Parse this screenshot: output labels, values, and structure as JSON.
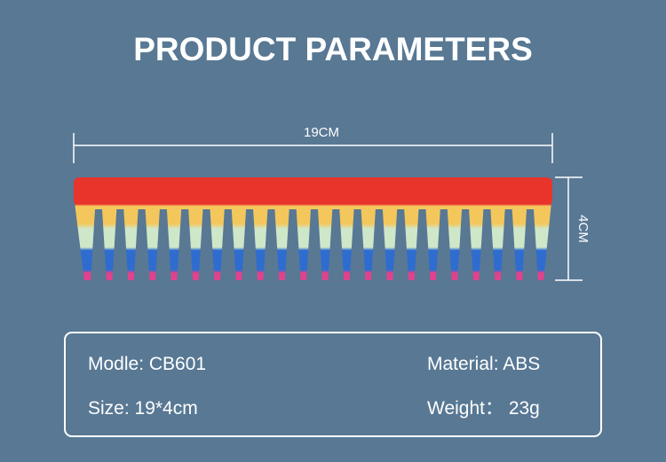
{
  "header": {
    "title": "PRODUCT PARAMETERS"
  },
  "dimensions": {
    "length": "19CM",
    "height": "4CM"
  },
  "specs": {
    "rows": [
      [
        "Modle: CB601",
        "Material: ABS"
      ],
      [
        "Size: 19*4cm",
        "Weight： 23g"
      ]
    ]
  }
}
